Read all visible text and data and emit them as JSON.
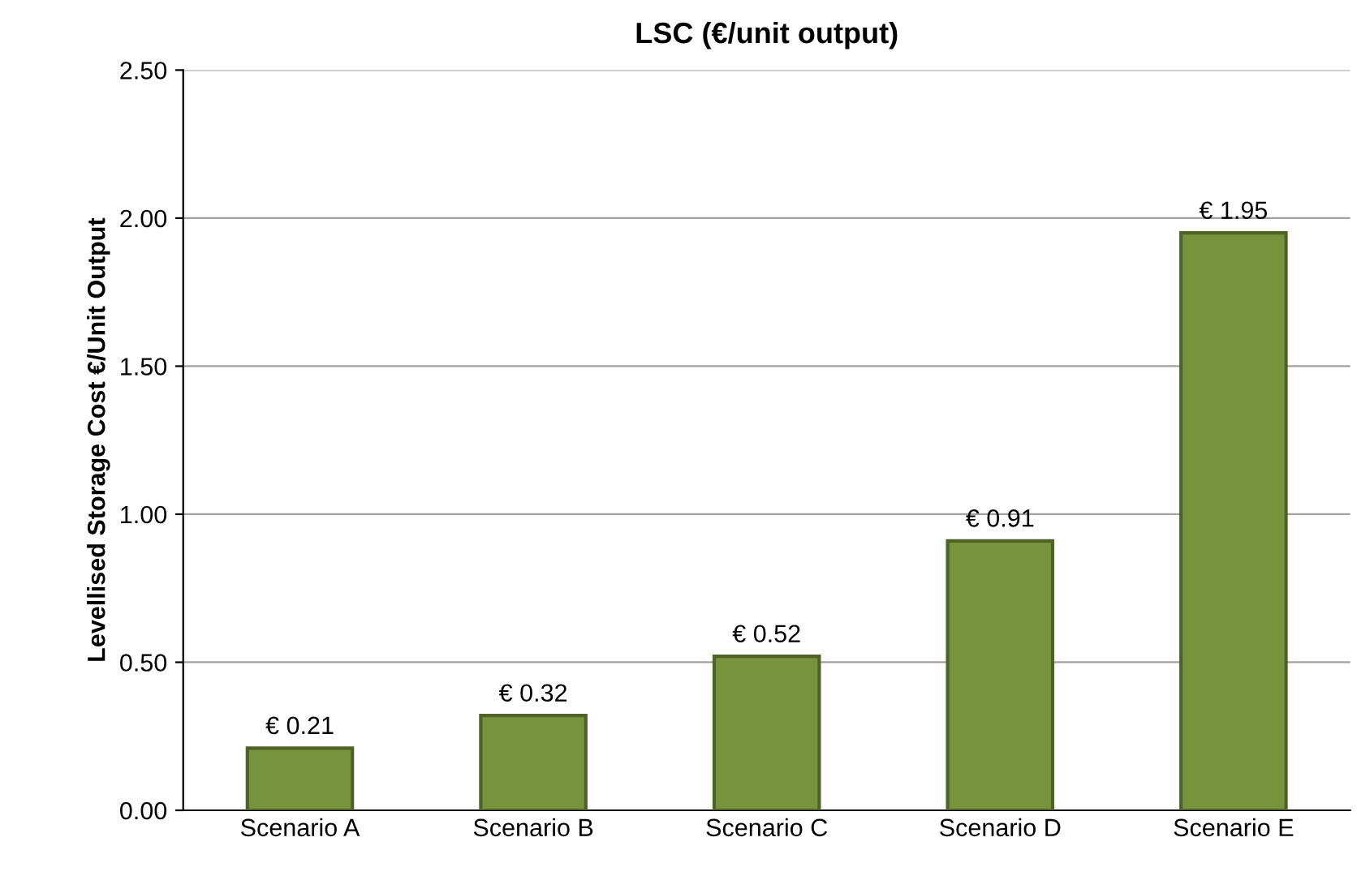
{
  "chart_data": {
    "type": "bar",
    "title": "LSC (€/unit output)",
    "ylabel": "Levellised Storage Cost €/Unit Output",
    "categories": [
      "Scenario A",
      "Scenario B",
      "Scenario C",
      "Scenario D",
      "Scenario E"
    ],
    "values": [
      0.21,
      0.32,
      0.52,
      0.91,
      1.95
    ],
    "value_labels": [
      "€ 0.21",
      "€ 0.32",
      "€ 0.52",
      "€ 0.91",
      "€ 1.95"
    ],
    "color": "#77933c",
    "ylim": [
      0,
      2.5
    ],
    "yticks": [
      {
        "value": 0,
        "label": "0.00"
      },
      {
        "value": 0.5,
        "label": "0.50"
      },
      {
        "value": 1,
        "label": "1.00"
      },
      {
        "value": 1.5,
        "label": "1.50"
      },
      {
        "value": 2,
        "label": "2.00"
      },
      {
        "value": 2.5,
        "label": "2.50"
      }
    ],
    "grid": "y",
    "legend": false
  }
}
